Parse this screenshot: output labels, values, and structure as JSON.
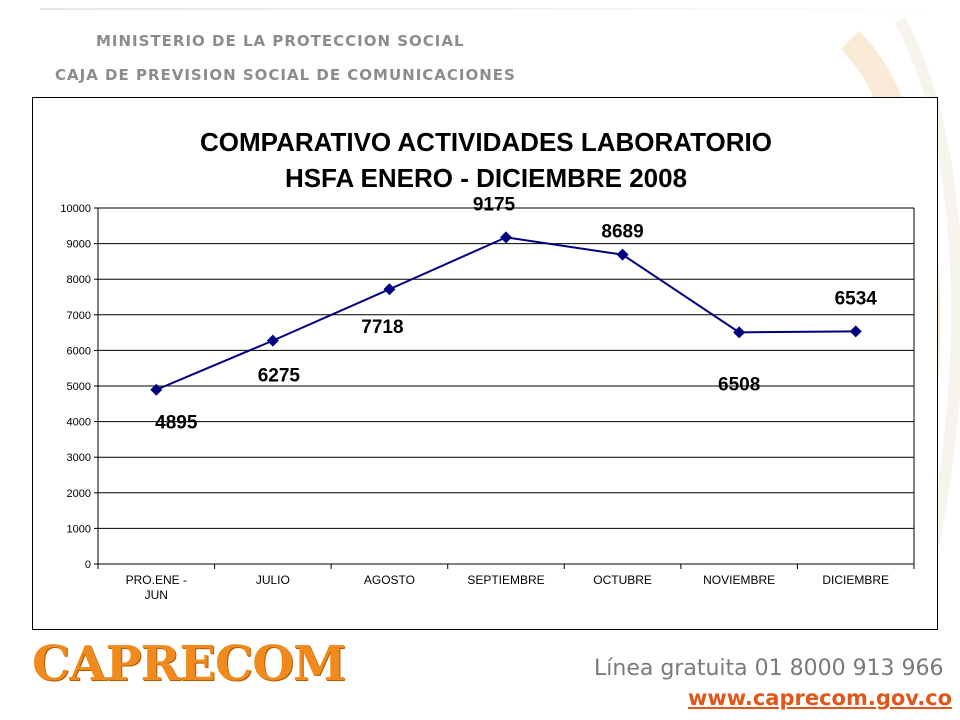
{
  "header": {
    "line1": "MINISTERIO DE LA PROTECCION SOCIAL",
    "line2": "CAJA DE PREVISION SOCIAL DE COMUNICACIONES"
  },
  "chart_data": {
    "type": "line",
    "title_line1": "COMPARATIVO ACTIVIDADES LABORATORIO",
    "title_line2": "HSFA  ENERO - DICIEMBRE 2008",
    "categories": [
      "PRO.ENE - JUN",
      "JULIO",
      "AGOSTO",
      "SEPTIEMBRE",
      "OCTUBRE",
      "NOVIEMBRE",
      "DICIEMBRE"
    ],
    "values": [
      4895,
      6275,
      7718,
      9175,
      8689,
      6508,
      6534
    ],
    "data_labels": [
      "4895",
      "6275",
      "7718",
      "9175",
      "8689",
      "6508",
      "6534"
    ],
    "ylim": [
      0,
      10000
    ],
    "yticks": [
      0,
      1000,
      2000,
      3000,
      4000,
      5000,
      6000,
      7000,
      8000,
      9000,
      10000
    ],
    "grid": true,
    "line_color": "#000080"
  },
  "footer": {
    "logo": "CAPRECOM",
    "phone": "Línea gratuita 01 8000 913 966",
    "url": "www.caprecom.gov.co"
  }
}
